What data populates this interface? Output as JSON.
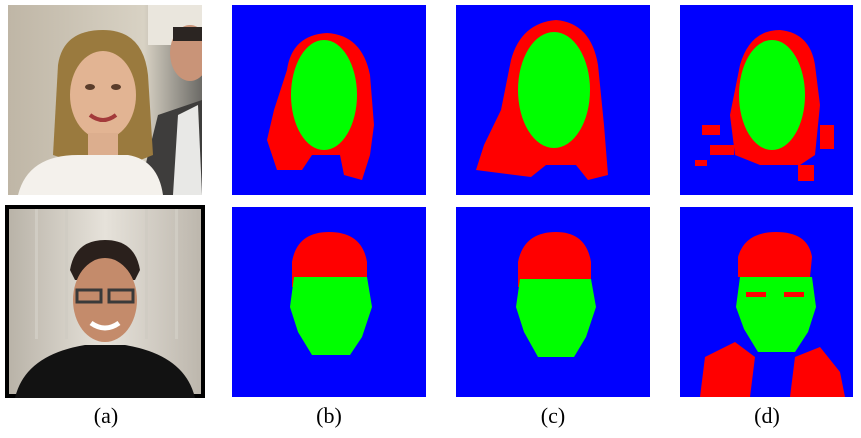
{
  "figure": {
    "labels": [
      "(a)",
      "(b)",
      "(c)",
      "(d)"
    ],
    "colors": {
      "background": "#0000ff",
      "hair": "#ff0000",
      "face": "#00ff00"
    }
  }
}
